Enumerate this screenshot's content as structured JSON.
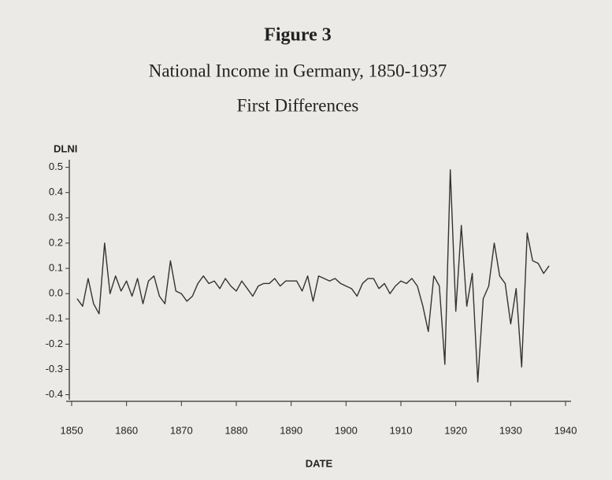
{
  "chart_data": {
    "type": "line",
    "title": "Figure 3",
    "subtitle": [
      "National Income in Germany, 1850-1937",
      "First Differences"
    ],
    "y_label": "DLNI",
    "x_label": "DATE",
    "x": [
      1851,
      1852,
      1853,
      1854,
      1855,
      1856,
      1857,
      1858,
      1859,
      1860,
      1861,
      1862,
      1863,
      1864,
      1865,
      1866,
      1867,
      1868,
      1869,
      1870,
      1871,
      1872,
      1873,
      1874,
      1875,
      1876,
      1877,
      1878,
      1879,
      1880,
      1881,
      1882,
      1883,
      1884,
      1885,
      1886,
      1887,
      1888,
      1889,
      1890,
      1891,
      1892,
      1893,
      1894,
      1895,
      1896,
      1897,
      1898,
      1899,
      1900,
      1901,
      1902,
      1903,
      1904,
      1905,
      1906,
      1907,
      1908,
      1909,
      1910,
      1911,
      1912,
      1913,
      1914,
      1915,
      1916,
      1917,
      1918,
      1919,
      1920,
      1921,
      1922,
      1923,
      1924,
      1925,
      1926,
      1927,
      1928,
      1929,
      1930,
      1931,
      1932,
      1933,
      1934,
      1935,
      1936,
      1937
    ],
    "series": [
      {
        "name": "DLNI",
        "color": "#333333",
        "values": [
          -0.02,
          -0.05,
          0.06,
          -0.04,
          -0.08,
          0.2,
          0.0,
          0.07,
          0.01,
          0.05,
          -0.01,
          0.06,
          -0.04,
          0.05,
          0.07,
          -0.01,
          -0.04,
          0.13,
          0.01,
          0.0,
          -0.03,
          -0.01,
          0.04,
          0.07,
          0.04,
          0.05,
          0.02,
          0.06,
          0.03,
          0.01,
          0.05,
          0.02,
          -0.01,
          0.03,
          0.04,
          0.04,
          0.06,
          0.03,
          0.05,
          0.05,
          0.05,
          0.01,
          0.07,
          -0.03,
          0.07,
          0.06,
          0.05,
          0.06,
          0.04,
          0.03,
          0.02,
          -0.01,
          0.04,
          0.06,
          0.06,
          0.02,
          0.04,
          0.0,
          0.03,
          0.05,
          0.04,
          0.06,
          0.03,
          -0.05,
          -0.15,
          0.07,
          0.03,
          -0.28,
          0.49,
          -0.07,
          0.27,
          -0.05,
          0.08,
          -0.35,
          -0.02,
          0.03,
          0.2,
          0.07,
          0.04,
          -0.12,
          0.02,
          -0.29,
          0.24,
          0.13,
          0.12,
          0.08,
          0.11
        ]
      }
    ],
    "xlim": [
      1849,
      1941
    ],
    "xticks": [
      1850,
      1860,
      1870,
      1880,
      1890,
      1900,
      1910,
      1920,
      1930,
      1940
    ],
    "ylim": [
      -0.42,
      0.53
    ],
    "yticks": [
      -0.4,
      -0.3,
      -0.2,
      -0.1,
      {
        "value": 0,
        "label": "0.0"
      },
      0.1,
      0.2,
      0.3,
      0.4,
      0.5
    ]
  }
}
